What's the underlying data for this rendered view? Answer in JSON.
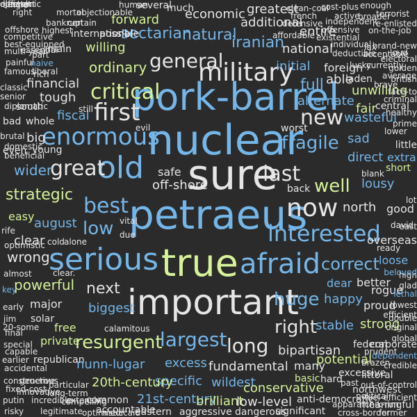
{
  "palette": {
    "background": "#2b2b2b",
    "white": "#e6e6e6",
    "grey": "#bdbdbd",
    "blue": "#74b6e8",
    "green": "#d6f29a"
  },
  "words": [
    {
      "text": "nuclear",
      "color": "blue"
    },
    {
      "text": "sure",
      "color": "white"
    },
    {
      "text": "petraeus",
      "color": "blue"
    },
    {
      "text": "true",
      "color": "green"
    },
    {
      "text": "pork-barrel",
      "color": "blue"
    },
    {
      "text": "important",
      "color": "white"
    },
    {
      "text": "serious",
      "color": "blue"
    },
    {
      "text": "afraid",
      "color": "blue"
    },
    {
      "text": "old",
      "color": "blue"
    },
    {
      "text": "military",
      "color": "white"
    },
    {
      "text": "enormous",
      "color": "blue"
    },
    {
      "text": "critical",
      "color": "green"
    },
    {
      "text": "now",
      "color": "white"
    },
    {
      "text": "first",
      "color": "white"
    },
    {
      "text": "new",
      "color": "white"
    },
    {
      "text": "great",
      "color": "white"
    },
    {
      "text": "last",
      "color": "white"
    },
    {
      "text": "well",
      "color": "green"
    },
    {
      "text": "best",
      "color": "blue"
    },
    {
      "text": "low",
      "color": "blue"
    },
    {
      "text": "interested",
      "color": "blue"
    },
    {
      "text": "fragile",
      "color": "blue"
    },
    {
      "text": "general",
      "color": "white"
    },
    {
      "text": "next",
      "color": "white"
    },
    {
      "text": "huge",
      "color": "blue"
    },
    {
      "text": "largest",
      "color": "blue"
    },
    {
      "text": "long",
      "color": "white"
    },
    {
      "text": "correct",
      "color": "blue"
    },
    {
      "text": "right",
      "color": "white"
    },
    {
      "text": "resurgent",
      "color": "green"
    },
    {
      "text": "strategic",
      "color": "green"
    },
    {
      "text": "wider",
      "color": "blue"
    },
    {
      "text": "powerful",
      "color": "green"
    },
    {
      "text": "wrong",
      "color": "white"
    },
    {
      "text": "ordinary",
      "color": "green"
    },
    {
      "text": "sectarian",
      "color": "blue"
    },
    {
      "text": "natural",
      "color": "blue"
    },
    {
      "text": "iranian",
      "color": "blue"
    },
    {
      "text": "forward",
      "color": "green"
    },
    {
      "text": "economic",
      "color": "white"
    },
    {
      "text": "additional",
      "color": "white"
    },
    {
      "text": "greatest",
      "color": "white"
    },
    {
      "text": "national",
      "color": "white"
    },
    {
      "text": "initial",
      "color": "blue"
    },
    {
      "text": "full",
      "color": "blue"
    },
    {
      "text": "alternate",
      "color": "blue"
    },
    {
      "text": "wasteful",
      "color": "blue"
    },
    {
      "text": "sad",
      "color": "blue"
    },
    {
      "text": "direct",
      "color": "blue"
    },
    {
      "text": "lousy",
      "color": "blue"
    },
    {
      "text": "extra",
      "color": "blue"
    },
    {
      "text": "short",
      "color": "green"
    },
    {
      "text": "north",
      "color": "white"
    },
    {
      "text": "good",
      "color": "white"
    },
    {
      "text": "august",
      "color": "blue"
    },
    {
      "text": "biggest",
      "color": "blue"
    },
    {
      "text": "happy",
      "color": "blue"
    },
    {
      "text": "stable",
      "color": "blue"
    },
    {
      "text": "strong",
      "color": "green"
    },
    {
      "text": "dear",
      "color": "blue"
    },
    {
      "text": "better",
      "color": "white"
    },
    {
      "text": "rogue",
      "color": "white"
    },
    {
      "text": "proud",
      "color": "white"
    },
    {
      "text": "loose",
      "color": "blue"
    },
    {
      "text": "fundamental",
      "color": "white"
    },
    {
      "text": "excess",
      "color": "blue"
    },
    {
      "text": "specific",
      "color": "blue"
    },
    {
      "text": "wildest",
      "color": "blue"
    },
    {
      "text": "conservative",
      "color": "green"
    },
    {
      "text": "potential",
      "color": "green"
    },
    {
      "text": "21st-century",
      "color": "blue"
    },
    {
      "text": "brilliant",
      "color": "green"
    },
    {
      "text": "low-level",
      "color": "white"
    },
    {
      "text": "nunn-lugar",
      "color": "blue"
    },
    {
      "text": "20th-century",
      "color": "green"
    },
    {
      "text": "financial",
      "color": "white"
    },
    {
      "text": "tough",
      "color": "white"
    },
    {
      "text": "fiscal",
      "color": "blue"
    },
    {
      "text": "big",
      "color": "white"
    },
    {
      "text": "young",
      "color": "white"
    },
    {
      "text": "whole",
      "color": "white"
    },
    {
      "text": "south",
      "color": "white"
    },
    {
      "text": "clear",
      "color": "white"
    },
    {
      "text": "easy",
      "color": "green"
    },
    {
      "text": "major",
      "color": "white"
    },
    {
      "text": "solar",
      "color": "white"
    },
    {
      "text": "free",
      "color": "green"
    },
    {
      "text": "private",
      "color": "green"
    },
    {
      "text": "republican",
      "color": "white"
    },
    {
      "text": "able",
      "color": "white"
    },
    {
      "text": "unwilling",
      "color": "green"
    },
    {
      "text": "fair",
      "color": "green"
    },
    {
      "text": "central",
      "color": "white"
    },
    {
      "text": "worst",
      "color": "white"
    },
    {
      "text": "little",
      "color": "white"
    },
    {
      "text": "entire",
      "color": "white"
    },
    {
      "text": "willing",
      "color": "green"
    },
    {
      "text": "foreign",
      "color": "white"
    },
    {
      "text": "laden",
      "color": "white"
    },
    {
      "text": "much",
      "color": "white"
    },
    {
      "text": "several",
      "color": "white"
    },
    {
      "text": "international",
      "color": "white"
    },
    {
      "text": "possible",
      "color": "white"
    },
    {
      "text": "main",
      "color": "white"
    },
    {
      "text": "off-shore",
      "color": "white"
    },
    {
      "text": "safe",
      "color": "white"
    },
    {
      "text": "back",
      "color": "white"
    },
    {
      "text": "overseas",
      "color": "white"
    },
    {
      "text": "hard",
      "color": "white"
    },
    {
      "text": "federal",
      "color": "white"
    },
    {
      "text": "bipartisan",
      "color": "white"
    },
    {
      "text": "many",
      "color": "white"
    },
    {
      "text": "basic",
      "color": "green"
    },
    {
      "text": "common",
      "color": "white"
    },
    {
      "text": "accountable",
      "color": "white"
    },
    {
      "text": "eastern",
      "color": "white"
    },
    {
      "text": "aggressive",
      "color": "white"
    },
    {
      "text": "dangerous",
      "color": "white"
    },
    {
      "text": "significant",
      "color": "white"
    },
    {
      "text": "anti-democratic",
      "color": "white"
    },
    {
      "text": "cross-border",
      "color": "white"
    },
    {
      "text": "apparatchik-run",
      "color": "white"
    },
    {
      "text": "meaningful",
      "color": "white"
    },
    {
      "text": "former",
      "color": "white"
    },
    {
      "text": "northwest",
      "color": "white"
    },
    {
      "text": "political",
      "color": "white"
    },
    {
      "text": "fuel-efficient",
      "color": "white"
    },
    {
      "text": "littoral",
      "color": "white"
    },
    {
      "text": "out-of-control",
      "color": "white"
    },
    {
      "text": "excessive",
      "color": "white"
    },
    {
      "text": "past",
      "color": "white"
    },
    {
      "text": "prudent",
      "color": "white"
    },
    {
      "text": "brazen",
      "color": "white"
    },
    {
      "text": "credible",
      "color": "white"
    },
    {
      "text": "corporate",
      "color": "white"
    },
    {
      "text": "dependent",
      "color": "blue"
    },
    {
      "text": "original",
      "color": "white"
    },
    {
      "text": "global",
      "color": "white"
    },
    {
      "text": "lowest",
      "color": "white"
    },
    {
      "text": "efficient",
      "color": "white"
    },
    {
      "text": "double",
      "color": "white"
    },
    {
      "text": "lethal",
      "color": "blue"
    },
    {
      "text": "high",
      "color": "white"
    },
    {
      "text": "glad",
      "color": "white"
    },
    {
      "text": "beloved",
      "color": "blue"
    },
    {
      "text": "ready",
      "color": "white"
    },
    {
      "text": "east",
      "color": "white"
    },
    {
      "text": "david",
      "color": "white"
    },
    {
      "text": "lot",
      "color": "white"
    },
    {
      "text": "clear.",
      "color": "white"
    },
    {
      "text": "alone",
      "color": "white"
    },
    {
      "text": "cold",
      "color": "white"
    },
    {
      "text": "vital",
      "color": "white"
    },
    {
      "text": "due",
      "color": "white"
    },
    {
      "text": "still",
      "color": "white"
    },
    {
      "text": "evil",
      "color": "white"
    },
    {
      "text": "bad",
      "color": "white"
    },
    {
      "text": "even",
      "color": "white"
    },
    {
      "text": "single",
      "color": "white"
    },
    {
      "text": "right",
      "color": "white"
    },
    {
      "text": "mortal",
      "color": "white"
    },
    {
      "text": "objectionable",
      "color": "white"
    },
    {
      "text": "human",
      "color": "white"
    },
    {
      "text": "competitive",
      "color": "white"
    },
    {
      "text": "bankrupt",
      "color": "white"
    },
    {
      "text": "certain",
      "color": "white"
    },
    {
      "text": "offshore",
      "color": "white"
    },
    {
      "text": "highest",
      "color": "white"
    },
    {
      "text": "best-equipped",
      "color": "white"
    },
    {
      "text": "multi-year",
      "color": "white"
    },
    {
      "text": "essential",
      "color": "white"
    },
    {
      "text": "painful",
      "color": "white"
    },
    {
      "text": "naive",
      "color": "blue"
    },
    {
      "text": "famous",
      "color": "white"
    },
    {
      "text": "liberal",
      "color": "white"
    },
    {
      "text": "classic",
      "color": "white"
    },
    {
      "text": "senior",
      "color": "white"
    },
    {
      "text": "diplomatic",
      "color": "white"
    },
    {
      "text": "brutal",
      "color": "white"
    },
    {
      "text": "domestic",
      "color": "white"
    },
    {
      "text": "beneficial",
      "color": "white"
    },
    {
      "text": "rife",
      "color": "white"
    },
    {
      "text": "optimistic",
      "color": "white"
    },
    {
      "text": "almost",
      "color": "white"
    },
    {
      "text": "key",
      "color": "blue"
    },
    {
      "text": "early",
      "color": "white"
    },
    {
      "text": "jim",
      "color": "white"
    },
    {
      "text": "20-some",
      "color": "white"
    },
    {
      "text": "final",
      "color": "white"
    },
    {
      "text": "special",
      "color": "white"
    },
    {
      "text": "capable",
      "color": "white"
    },
    {
      "text": "earlier",
      "color": "white"
    },
    {
      "text": "accidental",
      "color": "white"
    },
    {
      "text": "constructive",
      "color": "white"
    },
    {
      "text": "generous",
      "color": "white"
    },
    {
      "text": "fixed-cost",
      "color": "white"
    },
    {
      "text": "innovative",
      "color": "white"
    },
    {
      "text": "putin",
      "color": "white"
    },
    {
      "text": "incredible",
      "color": "white"
    },
    {
      "text": "risky",
      "color": "white"
    },
    {
      "text": "legitimate",
      "color": "white"
    },
    {
      "text": "optimistic",
      "color": "white"
    },
    {
      "text": "medicaid",
      "color": "white"
    },
    {
      "text": "particular",
      "color": "white"
    },
    {
      "text": "long-term",
      "color": "white"
    },
    {
      "text": "extensive",
      "color": "white"
    },
    {
      "text": "compelling",
      "color": "white"
    },
    {
      "text": "calamitous",
      "color": "white"
    },
    {
      "text": "clean-coal",
      "color": "white"
    },
    {
      "text": "cost-plus",
      "color": "white"
    },
    {
      "text": "french",
      "color": "white"
    },
    {
      "text": "active",
      "color": "white"
    },
    {
      "text": "broader",
      "color": "white"
    },
    {
      "text": "enough",
      "color": "white"
    },
    {
      "text": "terrorist",
      "color": "white"
    },
    {
      "text": "defensive",
      "color": "white"
    },
    {
      "text": "independent",
      "color": "white"
    },
    {
      "text": "re-enlisted",
      "color": "white"
    },
    {
      "text": "on-the-job",
      "color": "white"
    },
    {
      "text": "affordable",
      "color": "white"
    },
    {
      "text": "existential",
      "color": "white"
    },
    {
      "text": "offensive",
      "color": "white"
    },
    {
      "text": "individual",
      "color": "white"
    },
    {
      "text": "lax",
      "color": "white"
    },
    {
      "text": "brand-new",
      "color": "white"
    },
    {
      "text": "deductible",
      "color": "white"
    },
    {
      "text": "acceptable",
      "color": "white"
    },
    {
      "text": "electoral",
      "color": "white"
    },
    {
      "text": "lucky",
      "color": "white"
    },
    {
      "text": "average",
      "color": "white"
    },
    {
      "text": "currently",
      "color": "white"
    },
    {
      "text": "golden",
      "color": "white"
    },
    {
      "text": "brave",
      "color": "white"
    },
    {
      "text": "british",
      "color": "white"
    },
    {
      "text": "face-to",
      "color": "white"
    },
    {
      "text": "criminal",
      "color": "white"
    },
    {
      "text": "healthy",
      "color": "white"
    },
    {
      "text": "prime",
      "color": "white"
    },
    {
      "text": "lower",
      "color": "white"
    },
    {
      "text": "part",
      "color": "white"
    },
    {
      "text": "rich",
      "color": "white"
    },
    {
      "text": "loud",
      "color": "white"
    },
    {
      "text": "blank",
      "color": "white"
    },
    {
      "text": "difficult",
      "color": "white"
    },
    {
      "text": "different",
      "color": "white"
    },
    {
      "text": "electronic",
      "color": "white"
    },
    {
      "text": "open",
      "color": "white"
    }
  ]
}
